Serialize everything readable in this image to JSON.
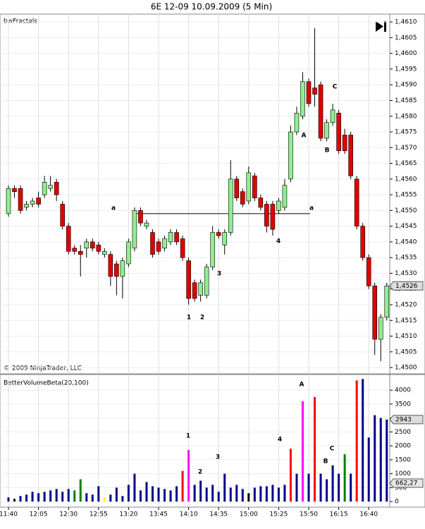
{
  "chart_data": [
    {
      "type": "candlestick",
      "title": "6E 12-09  10.09.2009 (5 Min)",
      "indicator": "bwFractals",
      "copyright": "© 2009 NinjaTrader, LLC",
      "categories": [
        "11:40",
        null,
        null,
        null,
        null,
        "12:05",
        null,
        null,
        null,
        null,
        "12:30",
        null,
        null,
        null,
        null,
        "12:55",
        null,
        null,
        null,
        null,
        "13:20",
        null,
        null,
        null,
        null,
        "13:45",
        null,
        null,
        null,
        null,
        "14:10",
        null,
        null,
        null,
        null,
        "14:35",
        null,
        null,
        null,
        null,
        "15:00",
        null,
        null,
        null,
        null,
        "15:25",
        null,
        null,
        null,
        null,
        "15:50",
        null,
        null,
        null,
        null,
        "16:15",
        null,
        null,
        null,
        null,
        "16:40",
        null,
        null,
        null
      ],
      "open": [
        1.4549,
        1.4557,
        1.4557,
        1.4551,
        1.4552,
        1.4554,
        1.4555,
        1.4557,
        1.4559,
        1.4552,
        1.4545,
        1.4538,
        1.4537,
        1.4538,
        1.454,
        1.4539,
        1.4536,
        1.4536,
        1.4533,
        1.4529,
        1.4533,
        1.4538,
        1.455,
        1.4545,
        1.4543,
        1.454,
        1.4538,
        1.454,
        1.4543,
        1.4541,
        1.4534,
        1.4527,
        1.4523,
        1.4523,
        1.4532,
        1.4543,
        1.4539,
        1.4543,
        1.456,
        1.4556,
        1.4553,
        1.4561,
        1.4554,
        1.4552,
        1.4552,
        1.455,
        1.4551,
        1.456,
        1.4575,
        1.458,
        1.4591,
        1.4589,
        1.459,
        1.4573,
        1.4578,
        1.4581,
        1.4574,
        1.4574,
        1.456,
        1.4545,
        1.4535,
        1.4526,
        1.4509,
        1.4516
      ],
      "high": [
        1.4558,
        1.4558,
        1.4558,
        1.4553,
        1.4554,
        1.4556,
        1.4561,
        1.4561,
        1.456,
        1.4553,
        1.4546,
        1.4539,
        1.4539,
        1.4541,
        1.4541,
        1.454,
        1.4538,
        1.4537,
        1.4534,
        1.4535,
        1.4541,
        1.4551,
        1.4551,
        1.4547,
        1.4544,
        1.4541,
        1.4542,
        1.4544,
        1.4544,
        1.4542,
        1.4535,
        1.4528,
        1.4528,
        1.4533,
        1.4545,
        1.4544,
        1.4544,
        1.4566,
        1.4561,
        1.4557,
        1.4564,
        1.4562,
        1.4555,
        1.4553,
        1.4553,
        1.4554,
        1.456,
        1.4577,
        1.4583,
        1.4594,
        1.4592,
        1.4608,
        1.4591,
        1.4579,
        1.4584,
        1.4582,
        1.4576,
        1.4575,
        1.4561,
        1.4546,
        1.4536,
        1.4527,
        1.4517,
        1.4527
      ],
      "low": [
        1.4548,
        1.4554,
        1.4549,
        1.455,
        1.4551,
        1.4551,
        1.4554,
        1.4556,
        1.4553,
        1.4544,
        1.4536,
        1.4536,
        1.4529,
        1.4535,
        1.4537,
        1.4536,
        1.4535,
        1.4526,
        1.4523,
        1.4522,
        1.4532,
        1.4537,
        1.4545,
        1.4544,
        1.4535,
        1.4536,
        1.4537,
        1.4539,
        1.4539,
        1.4534,
        1.452,
        1.4521,
        1.4521,
        1.4522,
        1.4531,
        1.4541,
        1.4536,
        1.4542,
        1.4553,
        1.4551,
        1.4552,
        1.4553,
        1.455,
        1.4543,
        1.4542,
        1.4549,
        1.455,
        1.4559,
        1.4574,
        1.4579,
        1.4583,
        1.4583,
        1.4572,
        1.4572,
        1.4577,
        1.4568,
        1.4568,
        1.456,
        1.4544,
        1.4534,
        1.4525,
        1.4504,
        1.4502,
        1.4515
      ],
      "close": [
        1.4557,
        1.4556,
        1.455,
        1.4552,
        1.4553,
        1.4552,
        1.4559,
        1.4558,
        1.4555,
        1.4545,
        1.4537,
        1.4537,
        1.4536,
        1.454,
        1.4538,
        1.4537,
        1.4537,
        1.4529,
        1.4529,
        1.4534,
        1.454,
        1.455,
        1.4546,
        1.4546,
        1.4536,
        1.4537,
        1.4541,
        1.4543,
        1.454,
        1.4535,
        1.4522,
        1.4522,
        1.4527,
        1.4532,
        1.4543,
        1.4542,
        1.4543,
        1.456,
        1.4554,
        1.4552,
        1.4562,
        1.4554,
        1.4551,
        1.4545,
        1.4544,
        1.4553,
        1.4558,
        1.4575,
        1.4581,
        1.4591,
        1.4584,
        1.4587,
        1.4573,
        1.4578,
        1.4582,
        1.4569,
        1.4569,
        1.4561,
        1.4545,
        1.4535,
        1.4526,
        1.4509,
        1.4516,
        1.4526
      ],
      "up_color": "#90ee90",
      "down_color": "#e00000",
      "ylim": [
        1.4498,
        1.46125
      ],
      "yticks": [
        {
          "value": 1.45,
          "label": "1,4500"
        },
        {
          "value": 1.4505,
          "label": "1,4505"
        },
        {
          "value": 1.451,
          "label": "1,4510"
        },
        {
          "value": 1.4515,
          "label": "1,4515"
        },
        {
          "value": 1.452,
          "label": "1,4520"
        },
        {
          "value": 1.4525,
          "label": "1,4525"
        },
        {
          "value": 1.453,
          "label": "1,4530"
        },
        {
          "value": 1.4535,
          "label": "1,4535"
        },
        {
          "value": 1.454,
          "label": "1,4540"
        },
        {
          "value": 1.4545,
          "label": "1,4545"
        },
        {
          "value": 1.455,
          "label": "1,4550"
        },
        {
          "value": 1.4555,
          "label": "1,4555"
        },
        {
          "value": 1.456,
          "label": "1,4560"
        },
        {
          "value": 1.4565,
          "label": "1,4565"
        },
        {
          "value": 1.457,
          "label": "1,4570"
        },
        {
          "value": 1.4575,
          "label": "1,4575"
        },
        {
          "value": 1.458,
          "label": "1,4580"
        },
        {
          "value": 1.4585,
          "label": "1,4585"
        },
        {
          "value": 1.459,
          "label": "1,4590"
        },
        {
          "value": 1.4595,
          "label": "1,4595"
        },
        {
          "value": 1.46,
          "label": "1,4600"
        },
        {
          "value": 1.4605,
          "label": "1,4605"
        },
        {
          "value": 1.461,
          "label": "1,4610"
        }
      ],
      "current": {
        "value": 1.4526,
        "label": "1,4526"
      },
      "level": 1.4549,
      "annotations": [
        "a",
        "a",
        "1",
        "2",
        "3",
        "4",
        "A",
        "B",
        "C"
      ],
      "grid": true
    },
    {
      "type": "bar",
      "title": "BetterVolumeBeta(20,100)",
      "values": [
        150,
        100,
        200,
        250,
        350,
        300,
        350,
        400,
        450,
        350,
        450,
        400,
        800,
        300,
        250,
        550,
        150,
        250,
        500,
        200,
        600,
        1000,
        400,
        700,
        550,
        500,
        450,
        400,
        550,
        1100,
        1850,
        600,
        750,
        500,
        600,
        350,
        1000,
        500,
        600,
        450,
        300,
        500,
        550,
        550,
        600,
        500,
        600,
        1900,
        1000,
        3600,
        1000,
        3750,
        1000,
        800,
        1300,
        1000,
        1700,
        1000,
        4350,
        4400,
        2300,
        3100,
        3000,
        2943
      ],
      "colors": [
        "#00008b",
        "#000000",
        "#00008b",
        "#00008b",
        "#00008b",
        "#00008b",
        "#00008b",
        "#00008b",
        "#00008b",
        "#00008b",
        "#00008b",
        "#008000",
        "#008000",
        "#00008b",
        "#00008b",
        "#00008b",
        "#ffff00",
        "#00008b",
        "#00008b",
        "#00008b",
        "#00008b",
        "#00008b",
        "#00008b",
        "#00008b",
        "#00008b",
        "#00008b",
        "#00008b",
        "#00008b",
        "#00008b",
        "#ff0000",
        "#ff00ff",
        "#00008b",
        "#00008b",
        "#00008b",
        "#00008b",
        "#00008b",
        "#00008b",
        "#00008b",
        "#00008b",
        "#00008b",
        "#000000",
        "#00008b",
        "#00008b",
        "#00008b",
        "#00008b",
        "#00008b",
        "#00008b",
        "#ff0000",
        "#00008b",
        "#ff00ff",
        "#00008b",
        "#ff0000",
        "#00008b",
        "#00008b",
        "#00008b",
        "#00008b",
        "#008000",
        "#00008b",
        "#ff0000",
        "#00008b",
        "#00008b",
        "#00008b",
        "#00008b",
        "#00008b"
      ],
      "ylim": [
        -200,
        4560
      ],
      "yticks": [
        0,
        500,
        1000,
        1500,
        2000,
        2500,
        3000,
        3500,
        4000
      ],
      "current": {
        "value": 2943,
        "label": "2943"
      },
      "average_current": {
        "value": 662.27,
        "label": "662,27"
      },
      "annotations": [
        "1",
        "2",
        "3",
        "4",
        "A",
        "B",
        "C"
      ],
      "grid": true
    }
  ]
}
